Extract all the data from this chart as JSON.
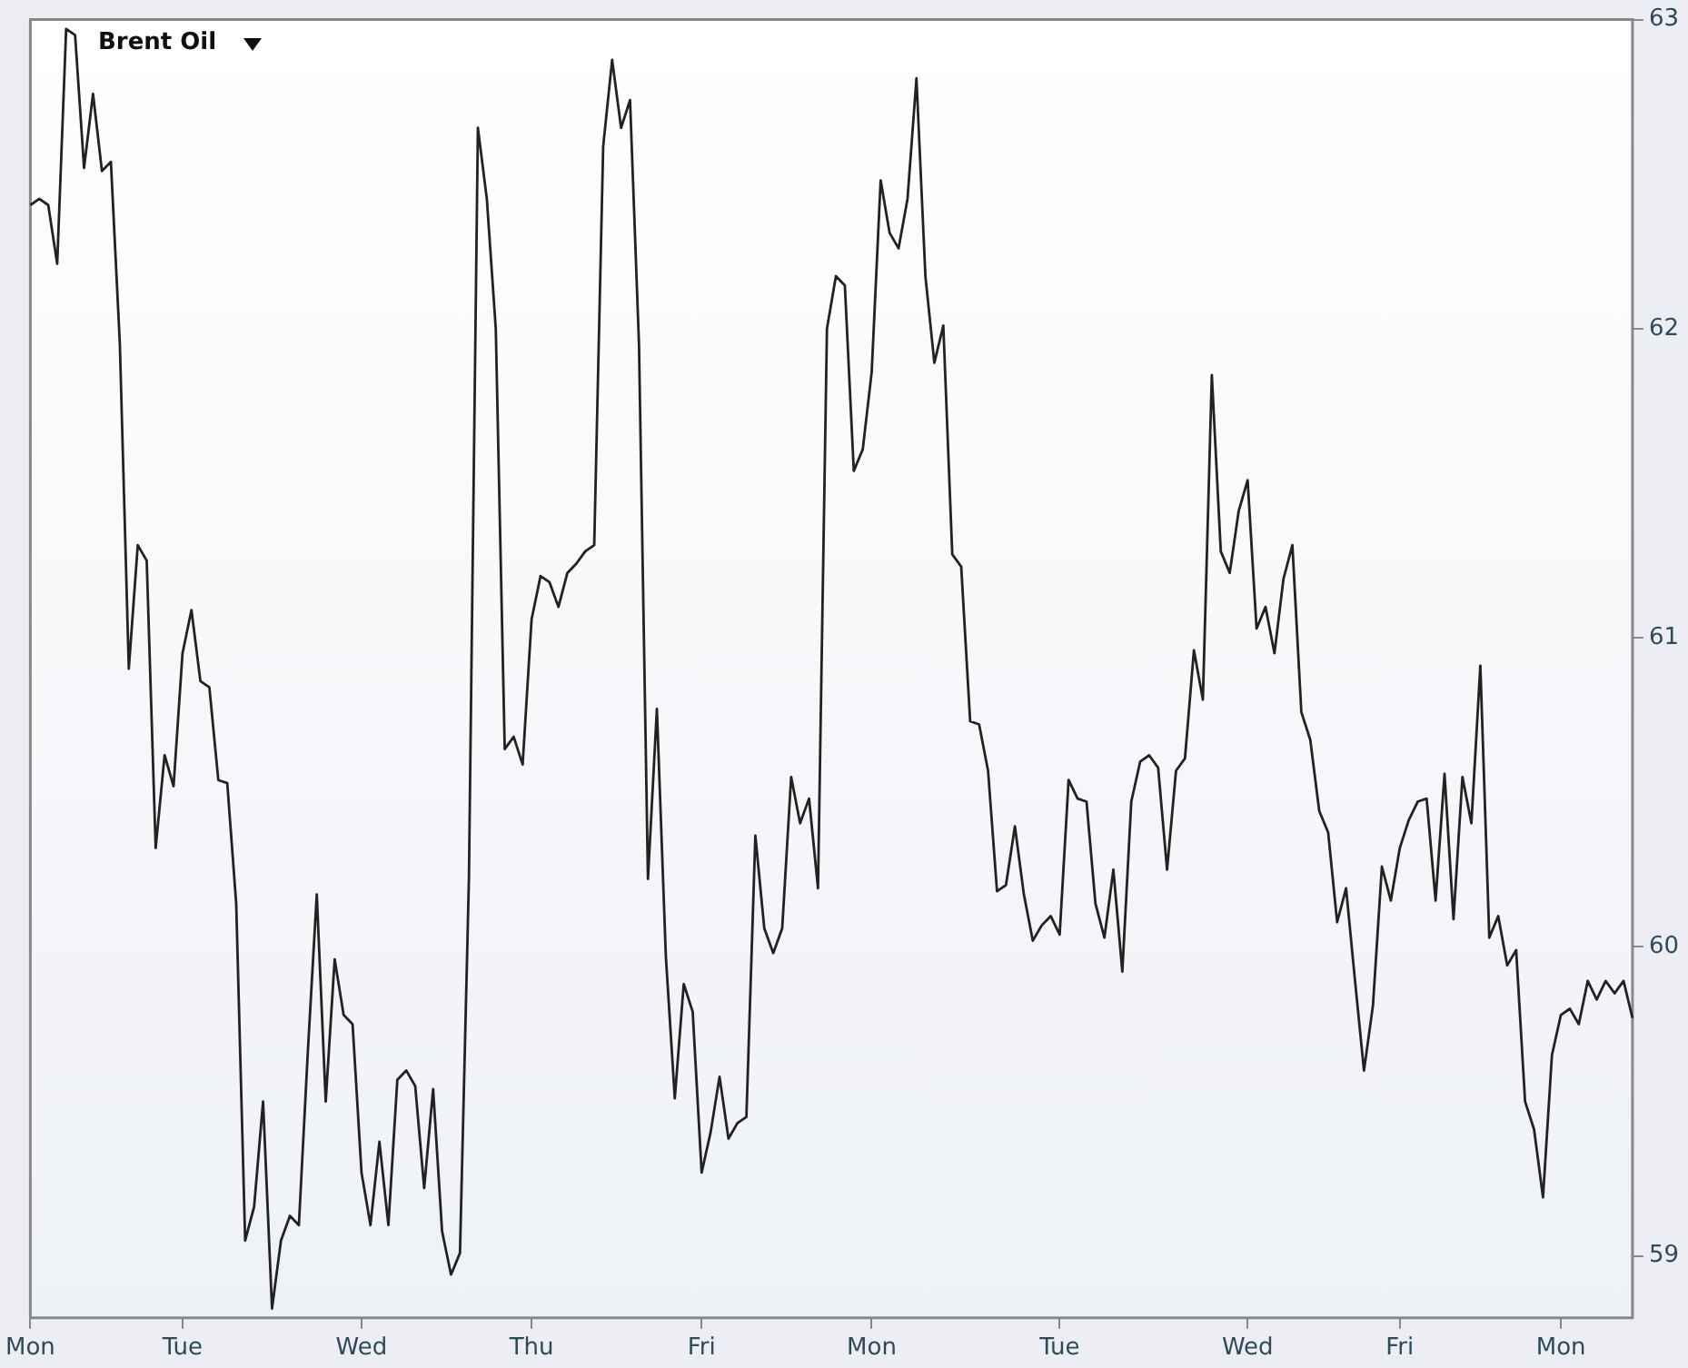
{
  "chart_data": {
    "type": "line",
    "title": "Brent Oil",
    "categories": [
      "Mon",
      null,
      null,
      null,
      null,
      null,
      null,
      null,
      null,
      null,
      null,
      null,
      null,
      null,
      null,
      null,
      null,
      "Tue",
      null,
      null,
      null,
      null,
      null,
      null,
      null,
      null,
      null,
      null,
      null,
      null,
      null,
      null,
      null,
      null,
      null,
      null,
      null,
      "Wed",
      null,
      null,
      null,
      null,
      null,
      null,
      null,
      null,
      null,
      null,
      null,
      null,
      null,
      null,
      null,
      null,
      null,
      null,
      "Thu",
      null,
      null,
      null,
      null,
      null,
      null,
      null,
      null,
      null,
      null,
      null,
      null,
      null,
      null,
      null,
      null,
      null,
      null,
      "Fri",
      null,
      null,
      null,
      null,
      null,
      null,
      null,
      null,
      null,
      null,
      null,
      null,
      null,
      null,
      null,
      null,
      null,
      null,
      "Mon",
      null,
      null,
      null,
      null,
      null,
      null,
      null,
      null,
      null,
      null,
      null,
      null,
      null,
      null,
      null,
      null,
      null,
      null,
      null,
      null,
      "Tue",
      null,
      null,
      null,
      null,
      null,
      null,
      null,
      null,
      null,
      null,
      null,
      null,
      null,
      null,
      null,
      null,
      null,
      null,
      null,
      null,
      "Wed",
      null,
      null,
      null,
      null,
      null,
      null,
      null,
      null,
      null,
      null,
      null,
      null,
      null,
      null,
      null,
      null,
      "Fri",
      null,
      null,
      null,
      null,
      null,
      null,
      null,
      null,
      null,
      null,
      null,
      null,
      null,
      null,
      null,
      null,
      null,
      "Mon",
      null,
      null,
      null,
      null,
      null,
      null,
      null,
      null
    ],
    "series": [
      {
        "color": "#222222",
        "values": [
          62.4,
          62.42,
          62.4,
          62.21,
          62.97,
          62.95,
          62.52,
          62.76,
          62.51,
          62.54,
          61.95,
          60.9,
          61.3,
          61.25,
          60.32,
          60.62,
          60.52,
          60.95,
          61.09,
          60.86,
          60.84,
          60.54,
          60.53,
          60.14,
          59.05,
          59.16,
          59.5,
          58.83,
          59.05,
          59.13,
          59.1,
          59.66,
          60.17,
          59.5,
          59.96,
          59.78,
          59.75,
          59.27,
          59.1,
          59.37,
          59.1,
          59.57,
          59.6,
          59.55,
          59.22,
          59.54,
          59.08,
          58.94,
          59.01,
          60.22,
          62.65,
          62.42,
          62.0,
          60.64,
          60.68,
          60.59,
          61.06,
          61.2,
          61.18,
          61.1,
          61.21,
          61.24,
          61.28,
          61.3,
          62.59,
          62.87,
          62.65,
          62.74,
          61.95,
          60.22,
          60.77,
          59.97,
          59.51,
          59.88,
          59.79,
          59.27,
          59.4,
          59.58,
          59.38,
          59.43,
          59.45,
          60.36,
          60.06,
          59.98,
          60.06,
          60.55,
          60.4,
          60.48,
          60.19,
          62.0,
          62.17,
          62.14,
          61.54,
          61.61,
          61.86,
          62.48,
          62.31,
          62.26,
          62.42,
          62.81,
          62.17,
          61.89,
          62.01,
          61.27,
          61.23,
          60.73,
          60.72,
          60.57,
          60.18,
          60.2,
          60.39,
          60.17,
          60.02,
          60.07,
          60.1,
          60.04,
          60.54,
          60.48,
          60.47,
          60.14,
          60.03,
          60.25,
          59.92,
          60.47,
          60.6,
          60.62,
          60.58,
          60.25,
          60.57,
          60.61,
          60.96,
          60.8,
          61.85,
          61.28,
          61.21,
          61.41,
          61.51,
          61.03,
          61.1,
          60.95,
          61.19,
          61.3,
          60.76,
          60.67,
          60.44,
          60.37,
          60.08,
          60.19,
          59.89,
          59.6,
          59.81,
          60.26,
          60.15,
          60.32,
          60.41,
          60.47,
          60.48,
          60.15,
          60.56,
          60.09,
          60.55,
          60.4,
          60.91,
          60.03,
          60.1,
          59.94,
          59.99,
          59.5,
          59.41,
          59.19,
          59.65,
          59.78,
          59.8,
          59.75,
          59.89,
          59.83,
          59.89,
          59.85,
          59.89,
          59.77
        ]
      }
    ],
    "ylim": [
      58.8,
      63
    ],
    "yticks": [
      59,
      60,
      61,
      62,
      63
    ],
    "grid": false,
    "legend": false,
    "marker": "none",
    "line_style": "solid"
  }
}
